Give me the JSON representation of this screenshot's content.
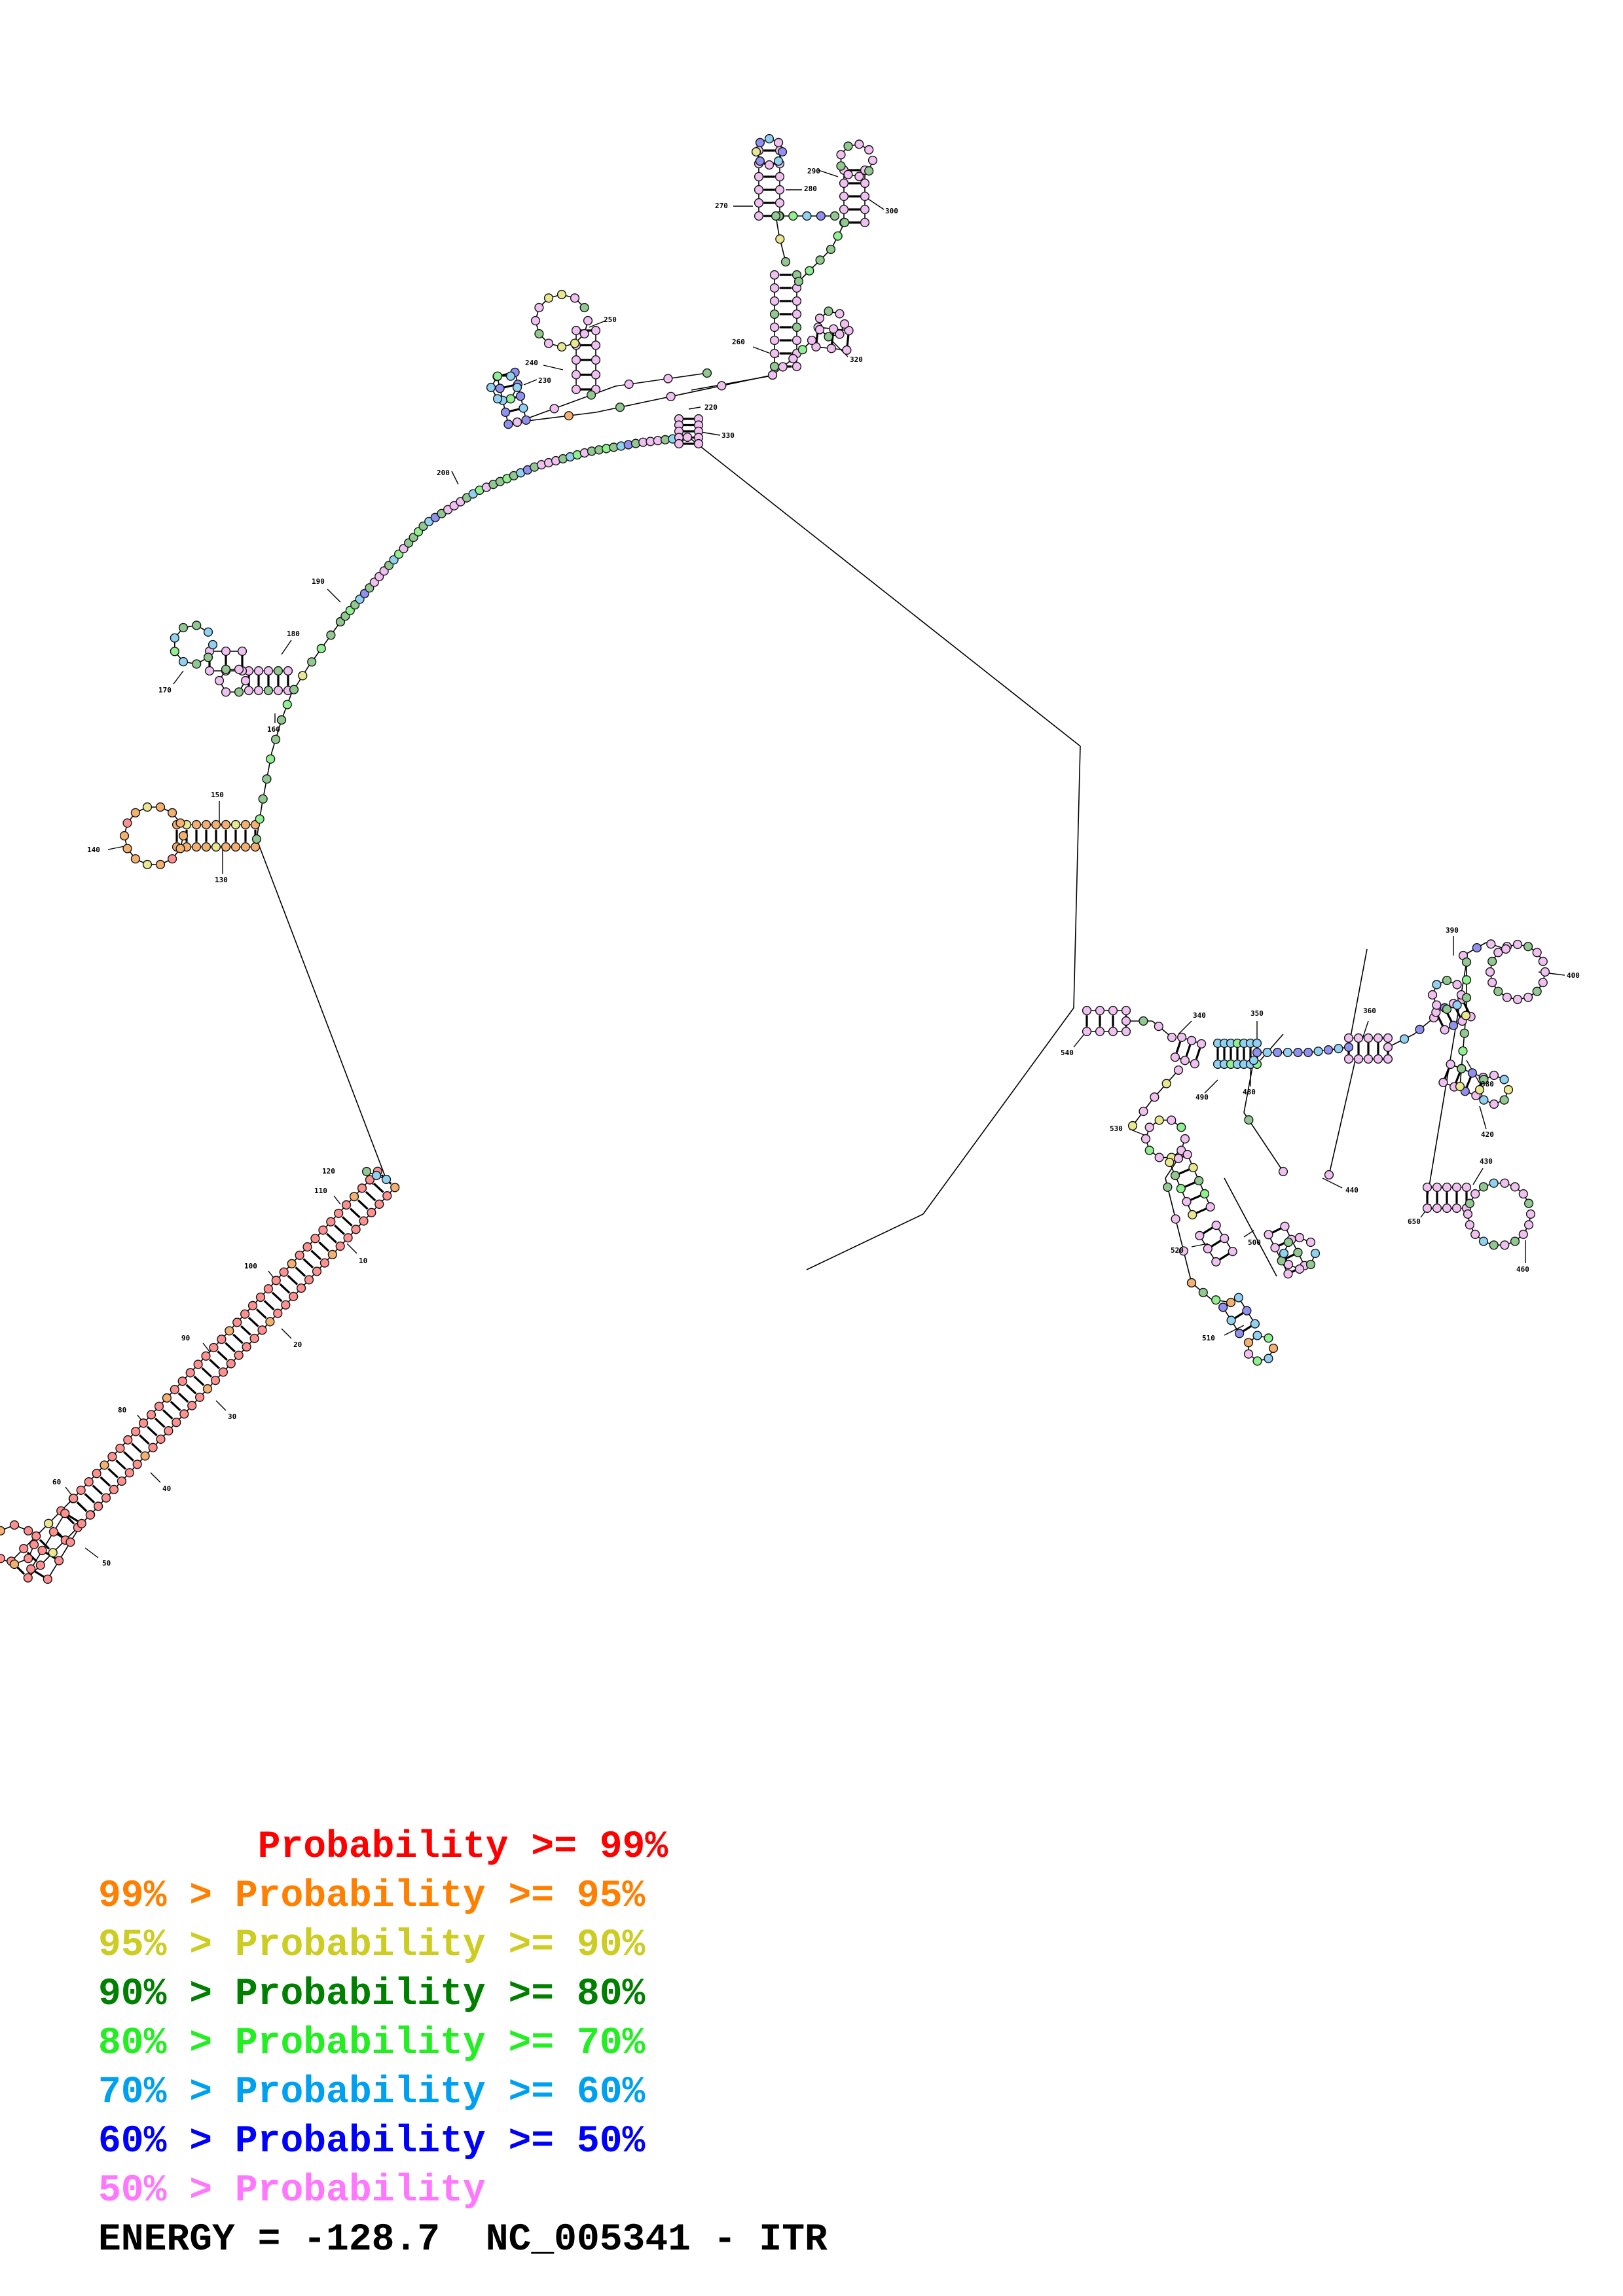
{
  "legend": [
    {
      "text": "       Probability >= 99%",
      "color": "#ff0000"
    },
    {
      "text": "99% > Probability >= 95%",
      "color": "#ff7f00"
    },
    {
      "text": "95% > Probability >= 90%",
      "color": "#cccc22"
    },
    {
      "text": "90% > Probability >= 80%",
      "color": "#008000"
    },
    {
      "text": "80% > Probability >= 70%",
      "color": "#22ee22"
    },
    {
      "text": "70% > Probability >= 60%",
      "color": "#00a0f0"
    },
    {
      "text": "60% > Probability >= 50%",
      "color": "#0000ff"
    },
    {
      "text": "50% > Probability",
      "color": "#ff77ff"
    }
  ],
  "footer": {
    "energy_label": "ENERGY = -128.7",
    "sequence_id": "NC_005341 - ITR"
  },
  "position_labels": [
    "10",
    "20",
    "30",
    "40",
    "50",
    "60",
    "80",
    "90",
    "100",
    "110",
    "120",
    "130",
    "140",
    "150",
    "160",
    "170",
    "180",
    "190",
    "200",
    "220",
    "230",
    "240",
    "250",
    "260",
    "270",
    "280",
    "290",
    "300",
    "320",
    "330",
    "340",
    "350",
    "360",
    "380",
    "390",
    "400",
    "420",
    "430",
    "440",
    "460",
    "480",
    "490",
    "500",
    "510",
    "520",
    "530",
    "540",
    "650"
  ],
  "probability_colors": {
    "p99": "#ff9090",
    "p95": "#f4b070",
    "p90": "#e8e890",
    "p80": "#90c890",
    "p70": "#90f090",
    "p60": "#90d0f0",
    "p50": "#9090f0",
    "plow": "#f0c0f0"
  }
}
